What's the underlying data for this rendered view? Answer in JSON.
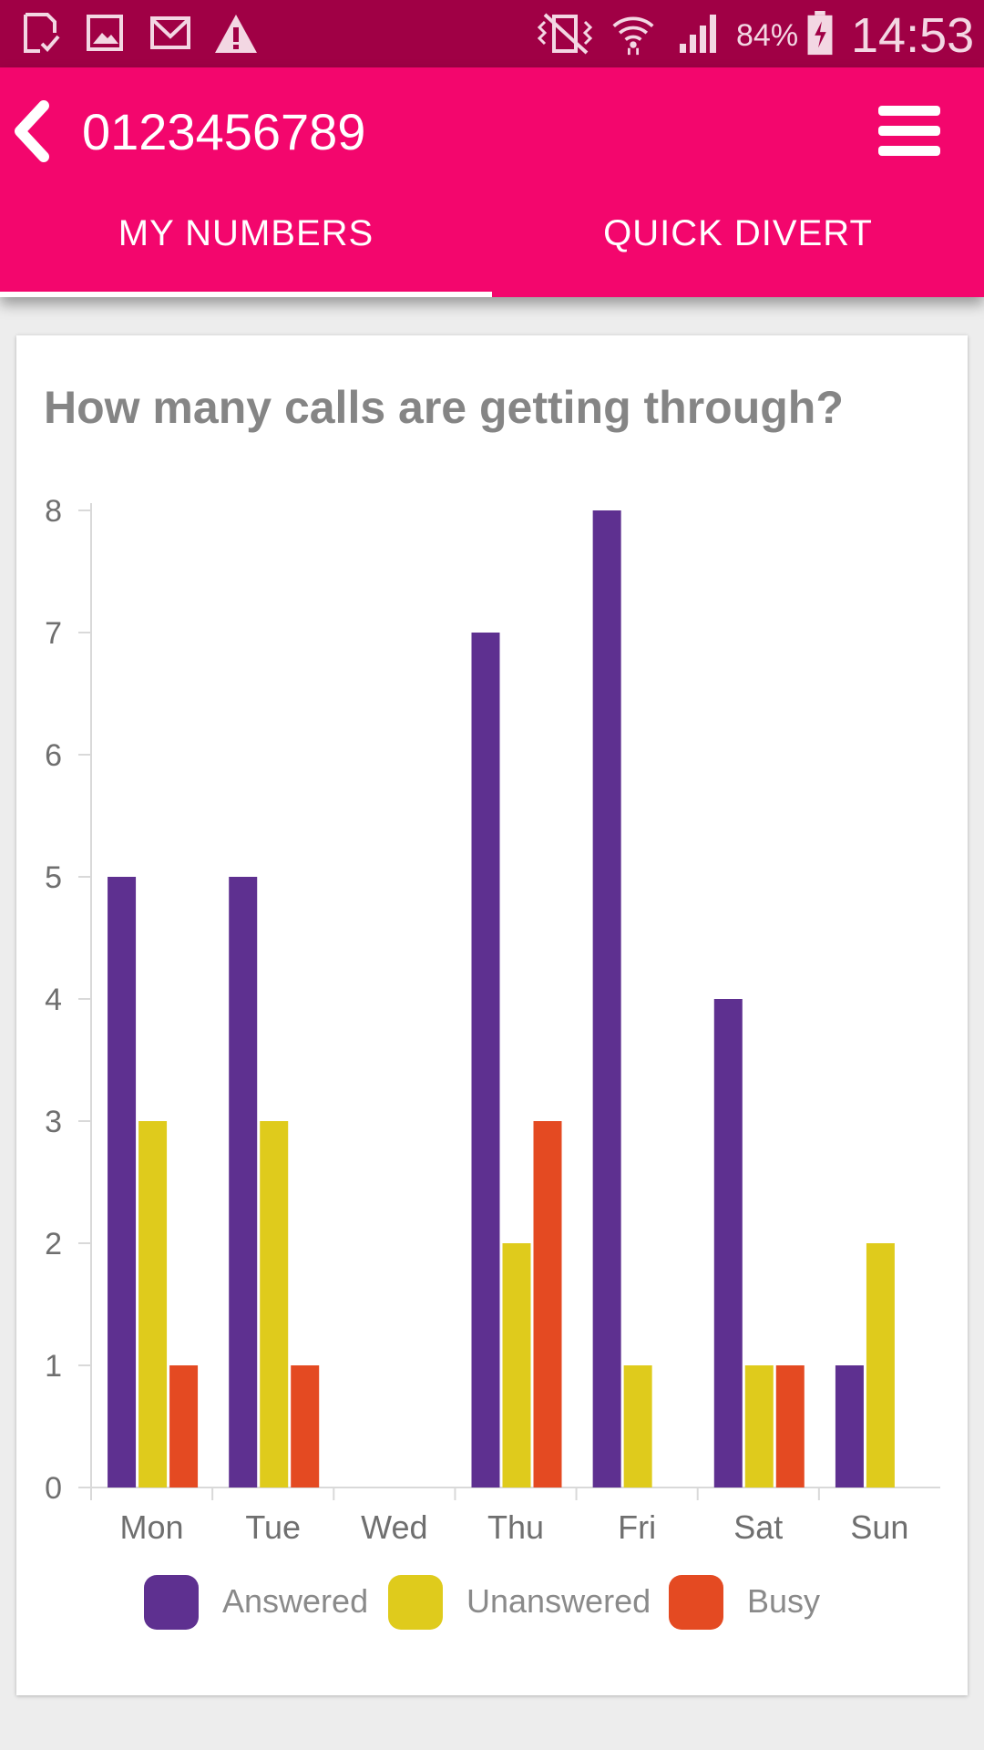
{
  "status_bar": {
    "battery": "84%",
    "time": "14:53",
    "icons": [
      "sim-check-icon",
      "gallery-icon",
      "gmail-icon",
      "warning-icon",
      "vibrate-icon",
      "wifi-icon",
      "signal-icon",
      "battery-charging-icon"
    ]
  },
  "app_bar": {
    "title": "0123456789",
    "back_icon": "chevron-left-icon",
    "menu_icon": "hamburger-menu-icon"
  },
  "tabs": [
    {
      "label": "MY  NUMBERS",
      "selected": true
    },
    {
      "label": "QUICK  DIVERT",
      "selected": false
    }
  ],
  "card": {
    "title": "How many calls are getting through?"
  },
  "colors": {
    "status_bar": "#a00045",
    "app_bar": "#f3066d",
    "answered": "#5e3090",
    "unanswered": "#dfcb1c",
    "busy": "#e44a22"
  },
  "chart_data": {
    "type": "bar",
    "categories": [
      "Mon",
      "Tue",
      "Wed",
      "Thu",
      "Fri",
      "Sat",
      "Sun"
    ],
    "series": [
      {
        "name": "Answered",
        "color": "#5e3090",
        "values": [
          5,
          5,
          0,
          7,
          8,
          4,
          1
        ]
      },
      {
        "name": "Unanswered",
        "color": "#dfcb1c",
        "values": [
          3,
          3,
          0,
          2,
          1,
          1,
          2
        ]
      },
      {
        "name": "Busy",
        "color": "#e44a22",
        "values": [
          1,
          1,
          0,
          3,
          0,
          1,
          0
        ]
      }
    ],
    "yticks": [
      "0",
      "1",
      "2",
      "3",
      "4",
      "5",
      "6",
      "7",
      "8"
    ],
    "ylim": [
      0,
      8
    ],
    "legend": "bottom",
    "grid": false
  }
}
